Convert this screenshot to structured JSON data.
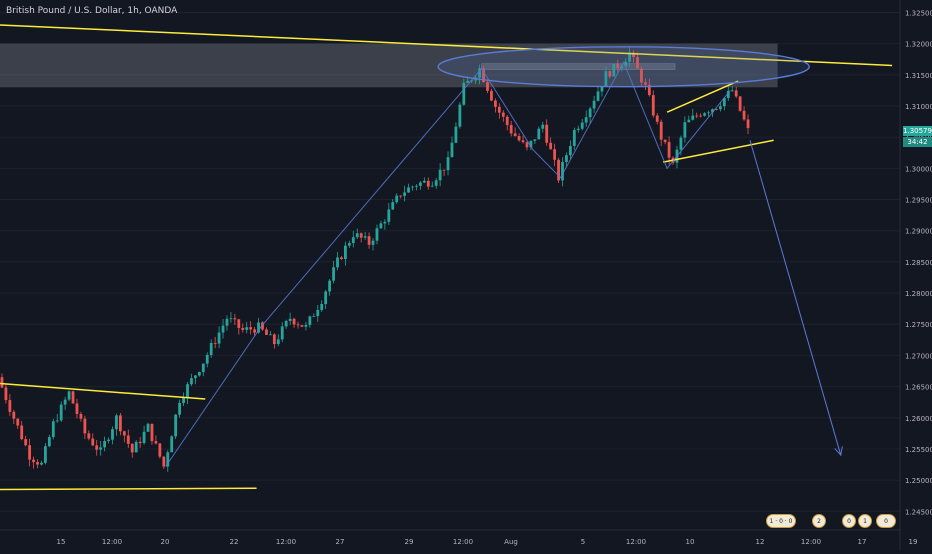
{
  "chart_title": "British Pound / U.S. Dollar, 1h, OANDA",
  "price_axis": {
    "labels": [
      "1.32500",
      "1.32000",
      "1.31500",
      "1.31000",
      "1.30500",
      "1.30000",
      "1.29500",
      "1.29000",
      "1.28500",
      "1.28000",
      "1.27500",
      "1.27000",
      "1.26500",
      "1.26000",
      "1.25500",
      "1.25000",
      "1.24500"
    ],
    "last_price": "1.30579",
    "countdown": "34:42"
  },
  "time_axis": {
    "labels": [
      "15",
      "12:00",
      "20",
      "22",
      "12:00",
      "27",
      "29",
      "12:00",
      "Aug",
      "5",
      "12:00",
      "10",
      "12",
      "12:00",
      "17",
      "19"
    ]
  },
  "event_badges": [
    "1 · 0 · 0",
    "2",
    "0",
    "1",
    "0"
  ],
  "colors": {
    "background": "#131722",
    "up": "#26a69a",
    "down": "#ef5350",
    "trendline": "#ffeb3b",
    "pattern": "#5b7bd5",
    "grid": "#1e222d",
    "axis_text": "#b2b5be"
  },
  "chart_data": {
    "type": "candlestick",
    "title": "British Pound / U.S. Dollar, 1h, OANDA",
    "ylim": [
      1.242,
      1.327
    ],
    "y_ticks": [
      1.325,
      1.32,
      1.315,
      1.31,
      1.305,
      1.3,
      1.295,
      1.29,
      1.285,
      1.28,
      1.275,
      1.27,
      1.265,
      1.26,
      1.255,
      1.25,
      1.245
    ],
    "price_path": [
      {
        "t": 0,
        "p": 1.2665
      },
      {
        "t": 4,
        "p": 1.26
      },
      {
        "t": 8,
        "p": 1.254
      },
      {
        "t": 11,
        "p": 1.2525
      },
      {
        "t": 14,
        "p": 1.259
      },
      {
        "t": 18,
        "p": 1.264
      },
      {
        "t": 22,
        "p": 1.2575
      },
      {
        "t": 26,
        "p": 1.2545
      },
      {
        "t": 30,
        "p": 1.26
      },
      {
        "t": 34,
        "p": 1.2545
      },
      {
        "t": 38,
        "p": 1.2585
      },
      {
        "t": 42,
        "p": 1.2522
      },
      {
        "t": 46,
        "p": 1.263
      },
      {
        "t": 52,
        "p": 1.269
      },
      {
        "t": 58,
        "p": 1.276
      },
      {
        "t": 62,
        "p": 1.274
      },
      {
        "t": 66,
        "p": 1.2745
      },
      {
        "t": 70,
        "p": 1.272
      },
      {
        "t": 74,
        "p": 1.276
      },
      {
        "t": 78,
        "p": 1.2745
      },
      {
        "t": 82,
        "p": 1.279
      },
      {
        "t": 86,
        "p": 1.285
      },
      {
        "t": 90,
        "p": 1.2895
      },
      {
        "t": 94,
        "p": 1.288
      },
      {
        "t": 98,
        "p": 1.292
      },
      {
        "t": 102,
        "p": 1.296
      },
      {
        "t": 106,
        "p": 1.2975
      },
      {
        "t": 110,
        "p": 1.298
      },
      {
        "t": 114,
        "p": 1.301
      },
      {
        "t": 118,
        "p": 1.313
      },
      {
        "t": 122,
        "p": 1.316
      },
      {
        "t": 126,
        "p": 1.31
      },
      {
        "t": 130,
        "p": 1.306
      },
      {
        "t": 134,
        "p": 1.303
      },
      {
        "t": 138,
        "p": 1.307
      },
      {
        "t": 142,
        "p": 1.2985
      },
      {
        "t": 146,
        "p": 1.306
      },
      {
        "t": 150,
        "p": 1.31
      },
      {
        "t": 154,
        "p": 1.315
      },
      {
        "t": 158,
        "p": 1.317
      },
      {
        "t": 160,
        "p": 1.3185
      },
      {
        "t": 164,
        "p": 1.313
      },
      {
        "t": 168,
        "p": 1.305
      },
      {
        "t": 171,
        "p": 1.3005
      },
      {
        "t": 174,
        "p": 1.307
      },
      {
        "t": 178,
        "p": 1.309
      },
      {
        "t": 182,
        "p": 1.31
      },
      {
        "t": 186,
        "p": 1.3125
      },
      {
        "t": 190,
        "p": 1.306
      }
    ],
    "candle_count": 190,
    "annotations": {
      "trendlines": [
        {
          "from": [
            0,
            1.323
          ],
          "to": [
            226,
            1.3165
          ]
        },
        {
          "from": [
            0,
            1.2655
          ],
          "to": [
            52,
            1.263
          ]
        },
        {
          "from": [
            0,
            1.2485
          ],
          "to": [
            65,
            1.2487
          ]
        },
        {
          "from": [
            169,
            1.309
          ],
          "to": [
            187,
            1.314
          ]
        },
        {
          "from": [
            168,
            1.301
          ],
          "to": [
            196,
            1.3045
          ]
        }
      ],
      "zigzag": [
        [
          42,
          1.2522
        ],
        [
          66,
          1.2745
        ],
        [
          122,
          1.316
        ],
        [
          135,
          1.303
        ],
        [
          142,
          1.2985
        ],
        [
          158,
          1.317
        ],
        [
          169,
          1.3
        ],
        [
          185,
          1.3125
        ]
      ],
      "projection": {
        "from": [
          190,
          1.3045
        ],
        "to": [
          213,
          1.254
        ]
      },
      "zone": {
        "t": [
          0,
          197
        ],
        "p": [
          1.32,
          1.313
        ]
      },
      "inner_box": {
        "t": [
          122,
          171
        ],
        "p": [
          1.3168,
          1.316
        ]
      },
      "ellipse": {
        "center": [
          158,
          1.3163
        ],
        "rx_t": 47,
        "ry_p": 0.0032
      }
    }
  }
}
